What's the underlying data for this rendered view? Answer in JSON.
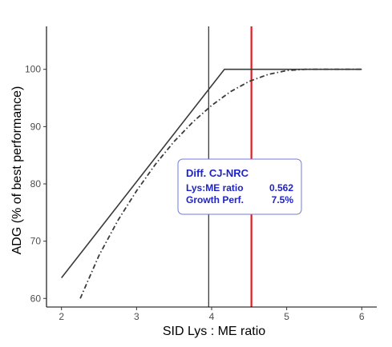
{
  "chart_data": {
    "type": "line",
    "xlabel": "SID Lys : ME ratio",
    "ylabel": "ADG (% of best performance)",
    "xlim": [
      1.8,
      6.2
    ],
    "ylim": [
      58.5,
      107.5
    ],
    "x_ticks": [
      "2",
      "3",
      "4",
      "5",
      "6"
    ],
    "y_ticks": [
      "60",
      "70",
      "80",
      "90",
      "100"
    ],
    "grid": false,
    "legend": "none",
    "series": [
      {
        "style": "solid",
        "color": "#3a3a3a",
        "x": [
          2.0,
          4.17,
          6.0
        ],
        "y": [
          63.6,
          100.0,
          100.0
        ]
      },
      {
        "style": "dashdot",
        "color": "#3a3a3a",
        "x": [
          2.25,
          2.5,
          2.75,
          3.0,
          3.25,
          3.5,
          3.75,
          4.0,
          4.25,
          4.5,
          4.75,
          5.0,
          5.25,
          6.0
        ],
        "y": [
          60.0,
          67.5,
          73.6,
          78.8,
          83.4,
          87.4,
          90.8,
          93.7,
          96.1,
          97.9,
          99.1,
          99.8,
          100.0,
          100.0
        ]
      }
    ],
    "vlines": [
      {
        "x": 3.96,
        "color": "#000000",
        "style": "thin"
      },
      {
        "x": 4.53,
        "color": "#e8191e",
        "style": "thick"
      }
    ],
    "annotation": {
      "title": "Diff. CJ-NRC",
      "rows": [
        {
          "label": "Lys:ME ratio",
          "value": "0.562"
        },
        {
          "label": "Growth Perf.",
          "value": "7.5%"
        }
      ],
      "border_color": "#6f7be0",
      "text_color": "#1f24c8"
    }
  }
}
